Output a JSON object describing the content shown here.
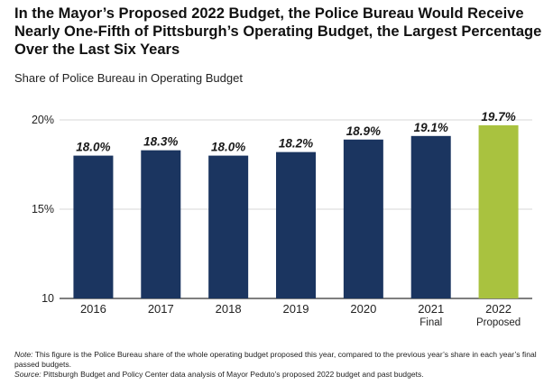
{
  "title": "In the Mayor’s Proposed 2022 Budget, the Police Bureau Would Receive Nearly One-Fifth of Pittsburgh’s Operating Budget, the Largest Percentage Over the Last Six Years",
  "subtitle": "Share of Police Bureau in Operating Budget",
  "colors": {
    "bar": "#1b3560",
    "highlight": "#a9c23f",
    "grid": "#d7d7d7"
  },
  "chart_data": {
    "type": "bar",
    "title": "In the Mayor’s Proposed 2022 Budget, the Police Bureau Would Receive Nearly One-Fifth of Pittsburgh’s Operating Budget, the Largest Percentage Over the Last Six Years",
    "subtitle": "Share of Police Bureau in Operating Budget",
    "categories": [
      "2016",
      "2017",
      "2018",
      "2019",
      "2020",
      "2021 Final",
      "2022 Proposed"
    ],
    "category_lines": [
      [
        "2016"
      ],
      [
        "2017"
      ],
      [
        "2018"
      ],
      [
        "2019"
      ],
      [
        "2020"
      ],
      [
        "2021",
        "Final"
      ],
      [
        "2022",
        "Proposed"
      ]
    ],
    "values": [
      18.0,
      18.3,
      18.0,
      18.2,
      18.9,
      19.1,
      19.7
    ],
    "data_labels": [
      "18.0%",
      "18.3%",
      "18.0%",
      "18.2%",
      "18.9%",
      "19.1%",
      "19.7%"
    ],
    "highlight_index": 6,
    "ylim": [
      10,
      20
    ],
    "yticks": [
      10,
      15,
      20
    ],
    "ytick_labels": [
      "10",
      "15%",
      "20%"
    ],
    "grid": true,
    "xlabel": "",
    "ylabel": ""
  },
  "notes": {
    "note_label": "Note:",
    "note_text": " This figure is the Police Bureau share of the whole operating budget proposed this year, compared to the previous year’s share in each year’s final passed budgets.",
    "source_label": "Source:",
    "source_text": " Pittsburgh Budget and Policy Center data analysis of Mayor Peduto’s proposed 2022 budget and past budgets."
  }
}
